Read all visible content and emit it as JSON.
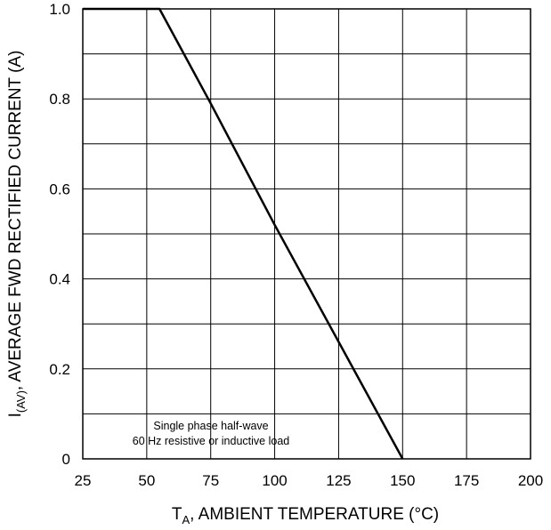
{
  "chart_data": {
    "type": "line",
    "title": "",
    "xlabel": {
      "main": "T",
      "sub": "A",
      "rest": ", AMBIENT TEMPERATURE (°C)"
    },
    "ylabel": {
      "main": "I",
      "sub": "(AV)",
      "rest": ", AVERAGE FWD RECTIFIED CURRENT (A)"
    },
    "xlim": [
      25,
      200
    ],
    "ylim": [
      0,
      1.0
    ],
    "x_ticks": [
      "25",
      "50",
      "75",
      "100",
      "125",
      "150",
      "175",
      "200"
    ],
    "y_ticks": [
      "0",
      "0.2",
      "0.4",
      "0.6",
      "0.8",
      "1.0"
    ],
    "grid": true,
    "series": [
      {
        "color": "#000000",
        "points": [
          [
            25,
            1.0
          ],
          [
            55,
            1.0
          ],
          [
            75,
            0.79
          ],
          [
            100,
            0.52
          ],
          [
            125,
            0.26
          ],
          [
            150,
            0.0
          ]
        ]
      }
    ],
    "annotation": [
      "Single phase half-wave",
      "60 Hz resistive or inductive load"
    ]
  }
}
